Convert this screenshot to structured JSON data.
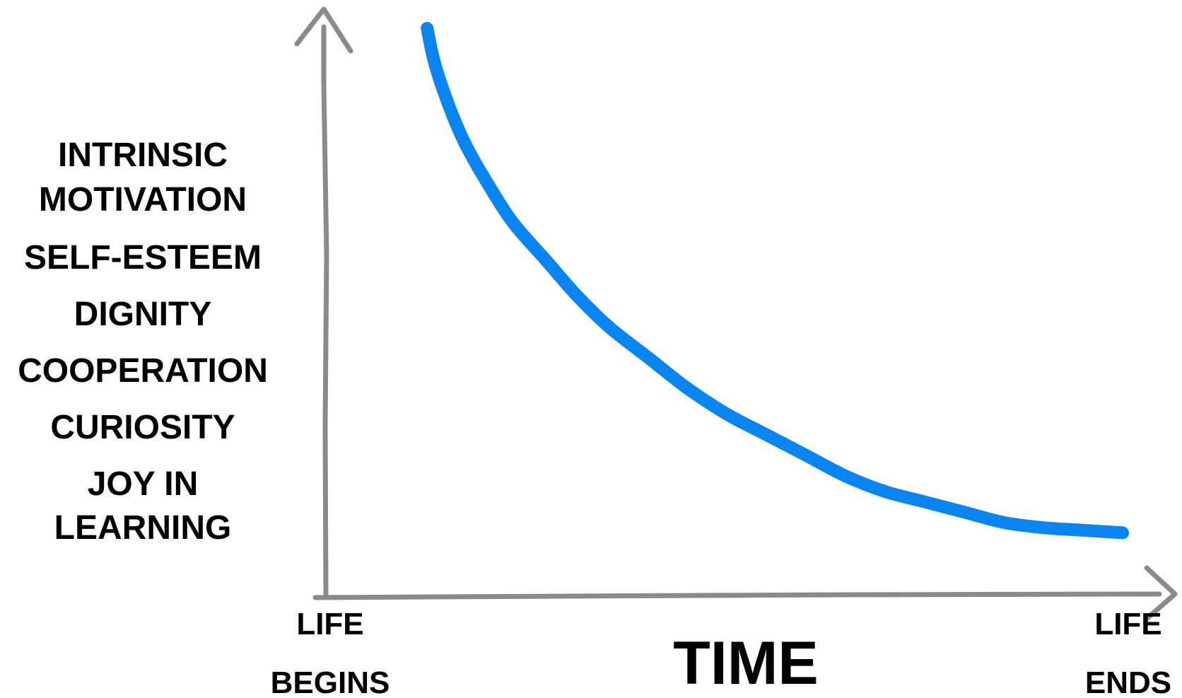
{
  "chart_data": {
    "type": "line",
    "title": "",
    "ylabel_lines": [
      "INTRINSIC",
      "MOTIVATION",
      "SELF-ESTEEM",
      "DIGNITY",
      "COOPERATION",
      "CURIOSITY",
      "JOY IN",
      "LEARNING"
    ],
    "xlabel": "TIME",
    "x_start_label": [
      "LIFE",
      "BEGINS"
    ],
    "x_end_label": [
      "LIFE",
      "ENDS"
    ],
    "xlim": [
      0,
      1
    ],
    "ylim": [
      0,
      1
    ],
    "grid": false,
    "axis_color": "#8a8a8a",
    "series": [
      {
        "color": "#0a84f0",
        "x": [
          0.12,
          0.13,
          0.15,
          0.17,
          0.2,
          0.23,
          0.27,
          0.31,
          0.35,
          0.4,
          0.45,
          0.5,
          0.55,
          0.6,
          0.65,
          0.7,
          0.75,
          0.8,
          0.85,
          0.9,
          0.95,
          1.0
        ],
        "y": [
          1.0,
          0.93,
          0.84,
          0.77,
          0.69,
          0.62,
          0.55,
          0.48,
          0.42,
          0.36,
          0.3,
          0.25,
          0.21,
          0.17,
          0.13,
          0.1,
          0.08,
          0.06,
          0.04,
          0.03,
          0.025,
          0.02
        ]
      }
    ]
  }
}
